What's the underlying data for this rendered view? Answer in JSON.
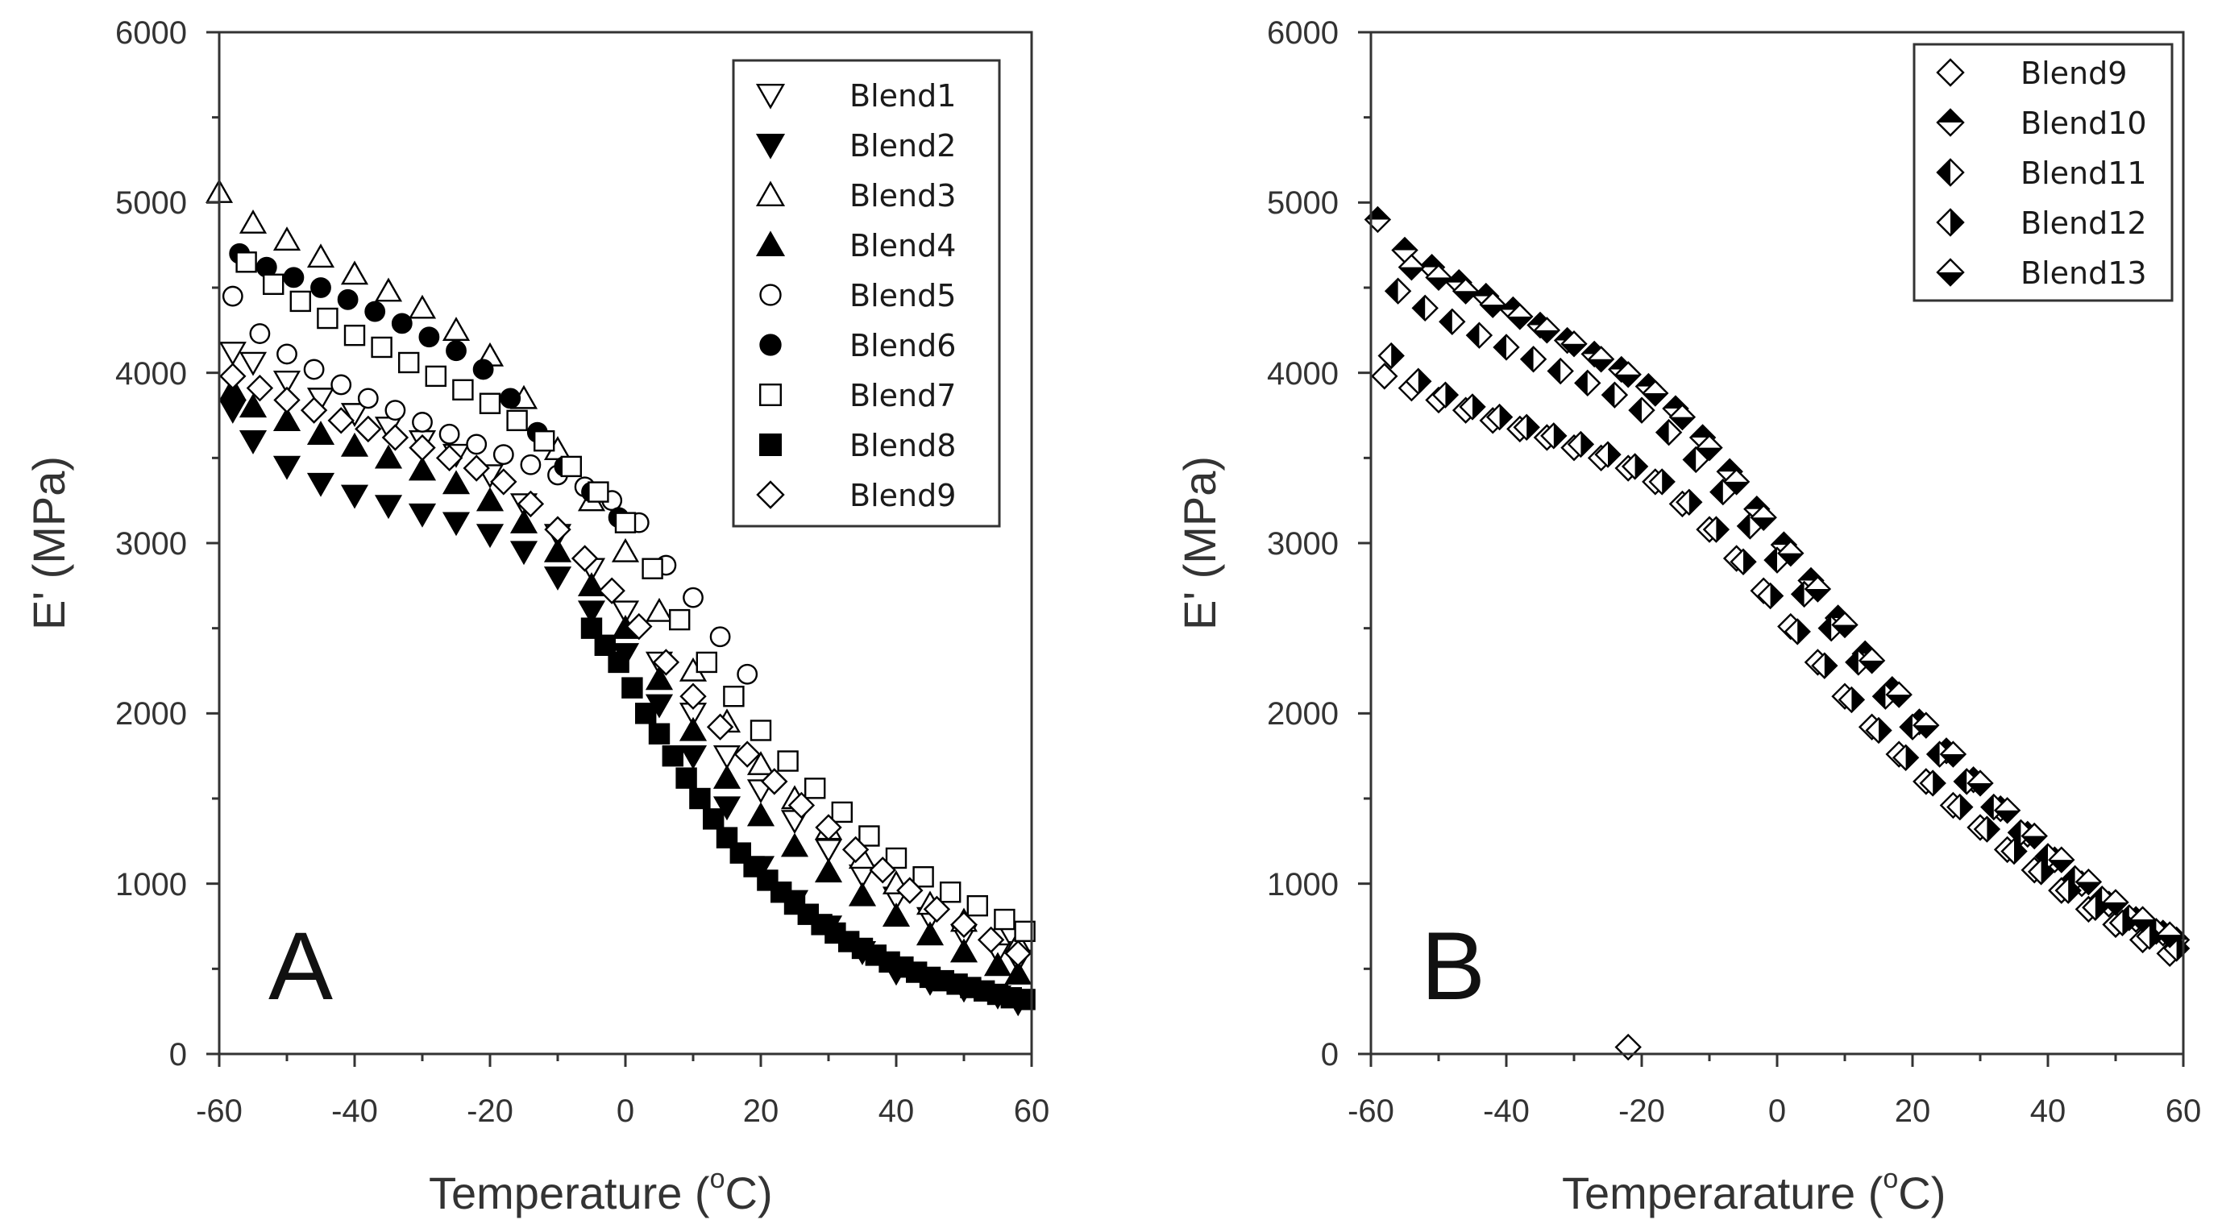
{
  "figure": {
    "colors": {
      "ink": "#000000",
      "axis": "#333333",
      "background": "#ffffff"
    }
  },
  "chart_data": [
    {
      "type": "scatter",
      "panel_label": "A",
      "xlabel": "Temperature (",
      "xlabel_degree": "o",
      "xlabel_unit": "C)",
      "ylabel": "E' (MPa)",
      "xlim": [
        -60,
        60
      ],
      "ylim": [
        0,
        6000
      ],
      "x_ticks": [
        -60,
        -40,
        -20,
        0,
        20,
        40,
        60
      ],
      "y_ticks": [
        0,
        1000,
        2000,
        3000,
        4000,
        5000,
        6000
      ],
      "x_tick_labels": [
        "-60",
        "-40",
        "-20",
        "0",
        "20",
        "40",
        "60"
      ],
      "y_tick_labels": [
        "0",
        "1000",
        "2000",
        "3000",
        "4000",
        "5000",
        "6000"
      ],
      "legend_position": "top-right",
      "series": [
        {
          "name": "Blend1",
          "marker": "triangle-down-open",
          "x": [
            -58,
            -55,
            -50,
            -45,
            -40,
            -35,
            -30,
            -25,
            -20,
            -15,
            -10,
            -5,
            0,
            5,
            10,
            15,
            20,
            25,
            30,
            35,
            40,
            45,
            50,
            55,
            58
          ],
          "y": [
            4120,
            4060,
            3950,
            3850,
            3760,
            3680,
            3600,
            3520,
            3400,
            3230,
            3050,
            2850,
            2600,
            2300,
            2000,
            1750,
            1550,
            1370,
            1200,
            1050,
            920,
            800,
            700,
            600,
            550
          ]
        },
        {
          "name": "Blend2",
          "marker": "triangle-down-filled",
          "x": [
            -58,
            -55,
            -50,
            -45,
            -40,
            -35,
            -30,
            -25,
            -20,
            -15,
            -10,
            -5,
            0,
            5,
            10,
            15,
            20,
            25,
            30,
            35,
            40,
            45,
            50,
            55,
            58
          ],
          "y": [
            3780,
            3600,
            3450,
            3350,
            3280,
            3220,
            3170,
            3120,
            3050,
            2950,
            2800,
            2600,
            2350,
            2050,
            1750,
            1450,
            1100,
            900,
            750,
            600,
            480,
            420,
            380,
            340,
            300
          ]
        },
        {
          "name": "Blend3",
          "marker": "triangle-up-open",
          "x": [
            -60,
            -55,
            -50,
            -45,
            -40,
            -35,
            -30,
            -25,
            -20,
            -15,
            -10,
            -5,
            0,
            5,
            10,
            15,
            20,
            25,
            30,
            35,
            40,
            45,
            50,
            55,
            58
          ],
          "y": [
            5060,
            4880,
            4780,
            4680,
            4580,
            4480,
            4380,
            4250,
            4100,
            3850,
            3550,
            3250,
            2950,
            2600,
            2250,
            1950,
            1700,
            1500,
            1320,
            1150,
            1000,
            880,
            780,
            700,
            650
          ]
        },
        {
          "name": "Blend4",
          "marker": "triangle-up-filled",
          "x": [
            -58,
            -55,
            -50,
            -45,
            -40,
            -35,
            -30,
            -25,
            -20,
            -15,
            -10,
            -5,
            0,
            5,
            10,
            15,
            20,
            25,
            30,
            35,
            40,
            45,
            50,
            55,
            58
          ],
          "y": [
            3900,
            3800,
            3720,
            3640,
            3570,
            3500,
            3430,
            3350,
            3250,
            3120,
            2950,
            2750,
            2500,
            2200,
            1900,
            1620,
            1400,
            1220,
            1070,
            930,
            810,
            700,
            600,
            520,
            470
          ]
        },
        {
          "name": "Blend5",
          "marker": "circle-open",
          "x": [
            -58,
            -54,
            -50,
            -46,
            -42,
            -38,
            -34,
            -30,
            -26,
            -22,
            -18,
            -14,
            -10,
            -6,
            -2,
            2,
            6,
            10,
            14,
            18
          ],
          "y": [
            4450,
            4230,
            4110,
            4020,
            3930,
            3850,
            3780,
            3710,
            3640,
            3580,
            3520,
            3460,
            3400,
            3330,
            3250,
            3120,
            2870,
            2680,
            2450,
            2230
          ]
        },
        {
          "name": "Blend6",
          "marker": "circle-filled",
          "x": [
            -57,
            -53,
            -49,
            -45,
            -41,
            -37,
            -33,
            -29,
            -25,
            -21,
            -17,
            -13,
            -9,
            -5,
            -1
          ],
          "y": [
            4700,
            4620,
            4560,
            4500,
            4430,
            4360,
            4290,
            4210,
            4130,
            4020,
            3850,
            3650,
            3450,
            3300,
            3150
          ]
        },
        {
          "name": "Blend7",
          "marker": "square-open",
          "x": [
            -56,
            -52,
            -48,
            -44,
            -40,
            -36,
            -32,
            -28,
            -24,
            -20,
            -16,
            -12,
            -8,
            -4,
            0,
            4,
            8,
            12,
            16,
            20,
            24,
            28,
            32,
            36,
            40,
            44,
            48,
            52,
            56,
            59
          ],
          "y": [
            4650,
            4520,
            4420,
            4320,
            4220,
            4150,
            4060,
            3980,
            3900,
            3820,
            3720,
            3600,
            3450,
            3300,
            3120,
            2850,
            2550,
            2300,
            2100,
            1900,
            1720,
            1560,
            1420,
            1280,
            1150,
            1040,
            950,
            870,
            790,
            720
          ]
        },
        {
          "name": "Blend8",
          "marker": "square-filled",
          "x": [
            -5,
            -3,
            -1,
            1,
            3,
            5,
            7,
            9,
            11,
            13,
            15,
            17,
            19,
            21,
            23,
            25,
            27,
            29,
            31,
            33,
            35,
            37,
            39,
            41,
            43,
            45,
            47,
            49,
            51,
            53,
            55,
            57,
            59
          ],
          "y": [
            2500,
            2400,
            2300,
            2150,
            2000,
            1880,
            1750,
            1620,
            1500,
            1380,
            1270,
            1180,
            1100,
            1020,
            950,
            880,
            820,
            760,
            710,
            660,
            620,
            580,
            540,
            510,
            480,
            450,
            430,
            410,
            390,
            370,
            350,
            330,
            320
          ]
        },
        {
          "name": "Blend9",
          "marker": "diamond-open",
          "x": [
            -58,
            -54,
            -50,
            -46,
            -42,
            -38,
            -34,
            -30,
            -26,
            -22,
            -18,
            -14,
            -10,
            -6,
            -2,
            2,
            6,
            10,
            14,
            18,
            22,
            26,
            30,
            34,
            38,
            42,
            46,
            50,
            54,
            58
          ],
          "y": [
            3980,
            3910,
            3840,
            3780,
            3720,
            3670,
            3620,
            3560,
            3500,
            3440,
            3360,
            3230,
            3080,
            2910,
            2720,
            2510,
            2300,
            2100,
            1920,
            1760,
            1600,
            1460,
            1330,
            1200,
            1080,
            960,
            850,
            760,
            670,
            590
          ]
        }
      ]
    },
    {
      "type": "scatter",
      "panel_label": "B",
      "xlabel": "Temperarature (",
      "xlabel_degree": "o",
      "xlabel_unit": "C)",
      "ylabel": "E' (MPa)",
      "xlim": [
        -60,
        60
      ],
      "ylim": [
        0,
        6000
      ],
      "x_ticks": [
        -60,
        -40,
        -20,
        0,
        20,
        40,
        60
      ],
      "y_ticks": [
        0,
        1000,
        2000,
        3000,
        4000,
        5000,
        6000
      ],
      "x_tick_labels": [
        "-60",
        "-40",
        "-20",
        "0",
        "20",
        "40",
        "60"
      ],
      "y_tick_labels": [
        "0",
        "1000",
        "2000",
        "3000",
        "4000",
        "5000",
        "6000"
      ],
      "legend_position": "top-right",
      "series": [
        {
          "name": "Blend9",
          "marker": "diamond-open",
          "x": [
            -58,
            -54,
            -50,
            -46,
            -42,
            -38,
            -34,
            -30,
            -26,
            -22,
            -18,
            -14,
            -10,
            -6,
            -2,
            2,
            6,
            10,
            14,
            18,
            22,
            26,
            30,
            34,
            38,
            42,
            46,
            50,
            54,
            58,
            -22
          ],
          "y": [
            3980,
            3910,
            3840,
            3780,
            3720,
            3670,
            3620,
            3560,
            3500,
            3440,
            3360,
            3230,
            3080,
            2910,
            2720,
            2510,
            2300,
            2100,
            1920,
            1760,
            1600,
            1460,
            1330,
            1200,
            1080,
            960,
            850,
            760,
            670,
            590,
            40
          ]
        },
        {
          "name": "Blend10",
          "marker": "diamond-top-filled",
          "x": [
            -59,
            -55,
            -51,
            -47,
            -43,
            -39,
            -35,
            -31,
            -27,
            -23,
            -19,
            -15,
            -11,
            -7,
            -3,
            1,
            5,
            9,
            13,
            17,
            21,
            25,
            29,
            33,
            37,
            41,
            45,
            49,
            53,
            57,
            59
          ],
          "y": [
            4900,
            4720,
            4620,
            4530,
            4450,
            4370,
            4280,
            4190,
            4110,
            4020,
            3920,
            3790,
            3620,
            3420,
            3200,
            2990,
            2780,
            2560,
            2350,
            2140,
            1950,
            1780,
            1610,
            1440,
            1290,
            1140,
            1000,
            880,
            790,
            710,
            670
          ]
        },
        {
          "name": "Blend11",
          "marker": "diamond-left-filled",
          "x": [
            -56,
            -52,
            -48,
            -44,
            -40,
            -36,
            -32,
            -28,
            -24,
            -20,
            -16,
            -12,
            -8,
            -4,
            0,
            4,
            8,
            12,
            16,
            20,
            24,
            28,
            32,
            36,
            40,
            44,
            48,
            52,
            56
          ],
          "y": [
            4480,
            4380,
            4300,
            4220,
            4150,
            4080,
            4010,
            3940,
            3870,
            3780,
            3650,
            3490,
            3300,
            3100,
            2900,
            2700,
            2500,
            2300,
            2100,
            1920,
            1760,
            1600,
            1450,
            1300,
            1160,
            1030,
            910,
            800,
            720
          ]
        },
        {
          "name": "Blend12",
          "marker": "diamond-right-filled",
          "x": [
            -57,
            -53,
            -49,
            -45,
            -41,
            -37,
            -33,
            -29,
            -25,
            -21,
            -17,
            -13,
            -9,
            -5,
            -1,
            3,
            7,
            11,
            15,
            19,
            23,
            27,
            31,
            35,
            39,
            43,
            47,
            51,
            55,
            59
          ],
          "y": [
            4100,
            3950,
            3870,
            3800,
            3740,
            3680,
            3630,
            3580,
            3520,
            3450,
            3360,
            3240,
            3080,
            2890,
            2690,
            2480,
            2280,
            2080,
            1900,
            1740,
            1590,
            1450,
            1320,
            1190,
            1070,
            960,
            860,
            770,
            690,
            620
          ]
        },
        {
          "name": "Blend13",
          "marker": "diamond-bottom-filled",
          "x": [
            -54,
            -50,
            -46,
            -42,
            -38,
            -34,
            -30,
            -26,
            -22,
            -18,
            -14,
            -10,
            -6,
            -2,
            2,
            6,
            10,
            14,
            18,
            22,
            26,
            30,
            34,
            38,
            42,
            46,
            50,
            54,
            58
          ],
          "y": [
            4620,
            4560,
            4480,
            4400,
            4330,
            4250,
            4170,
            4080,
            3990,
            3880,
            3740,
            3560,
            3360,
            3150,
            2940,
            2730,
            2520,
            2310,
            2110,
            1930,
            1760,
            1590,
            1430,
            1280,
            1140,
            1010,
            890,
            790,
            700
          ]
        }
      ]
    }
  ]
}
